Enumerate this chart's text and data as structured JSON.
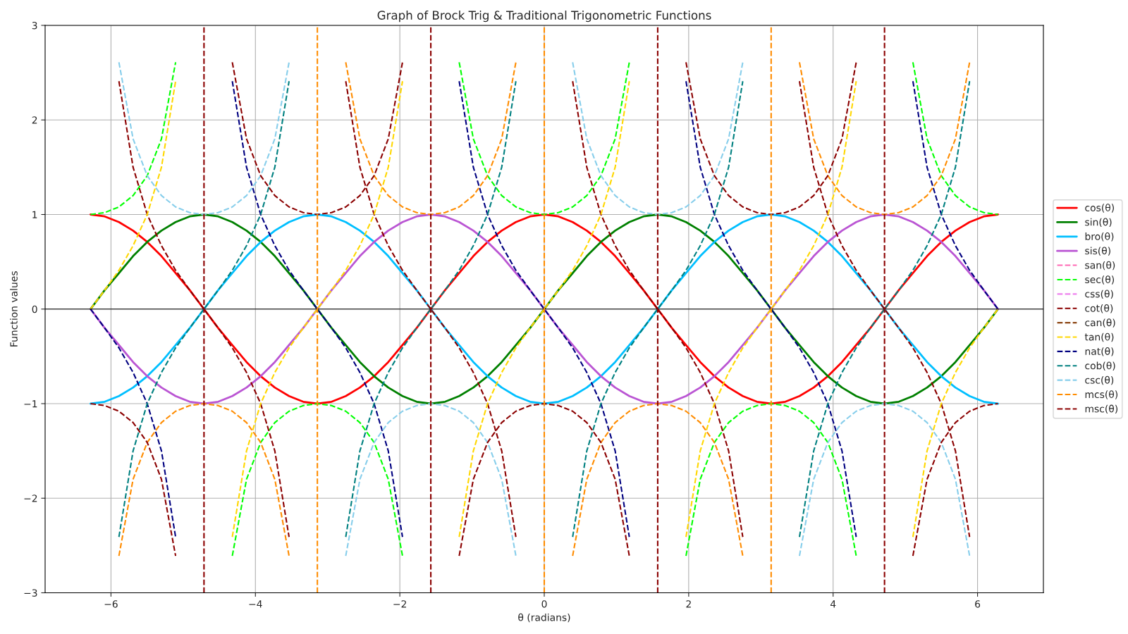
{
  "chart_data": {
    "type": "line",
    "title": "Graph of Brock Trig & Traditional Trigonometric Functions",
    "xlabel": "θ (radians)",
    "ylabel": "Function values",
    "x": [
      -6.283,
      -6.087,
      -5.89,
      -5.694,
      -5.498,
      -5.301,
      -5.105,
      -4.909,
      -4.712,
      -4.516,
      -4.32,
      -4.123,
      -3.927,
      -3.731,
      -3.534,
      -3.338,
      -3.142,
      -2.945,
      -2.749,
      -2.553,
      -2.356,
      -2.16,
      -1.963,
      -1.767,
      -1.571,
      -1.374,
      -1.178,
      -0.982,
      -0.785,
      -0.589,
      -0.393,
      -0.196,
      0,
      0.196,
      0.393,
      0.589,
      0.785,
      0.982,
      1.178,
      1.374,
      1.571,
      1.767,
      1.963,
      2.16,
      2.356,
      2.553,
      2.749,
      2.945,
      3.142,
      3.338,
      3.534,
      3.731,
      3.927,
      4.123,
      4.32,
      4.516,
      4.712,
      4.909,
      5.105,
      5.301,
      5.498,
      5.694,
      5.89,
      6.087,
      6.283
    ],
    "xlim": [
      -6.912,
      6.912
    ],
    "ylim": [
      -3,
      3
    ],
    "xticks": [
      {
        "value": -6,
        "label": "−6"
      },
      {
        "value": -4,
        "label": "−4"
      },
      {
        "value": -2,
        "label": "−2"
      },
      0,
      2,
      4,
      6
    ],
    "yticks": [
      {
        "value": -3,
        "label": "−3"
      },
      {
        "value": -2,
        "label": "−2"
      },
      {
        "value": -1,
        "label": "−1"
      },
      0,
      1,
      2,
      3
    ],
    "grid": true,
    "legend": "right",
    "ref_lines": [
      {
        "axis": "y",
        "value": 0,
        "color": "#000000",
        "line_style": "solid"
      },
      {
        "axis": "x",
        "value": -4.712,
        "color": "#8b0000",
        "line_style": "dashed"
      },
      {
        "axis": "x",
        "value": -1.571,
        "color": "#8b0000",
        "line_style": "dashed"
      },
      {
        "axis": "x",
        "value": 1.571,
        "color": "#8b0000",
        "line_style": "dashed"
      },
      {
        "axis": "x",
        "value": 4.712,
        "color": "#8b0000",
        "line_style": "dashed"
      },
      {
        "axis": "x",
        "value": -3.142,
        "color": "#ff8c00",
        "line_style": "dashed"
      },
      {
        "axis": "x",
        "value": 0,
        "color": "#ff8c00",
        "line_style": "dashed"
      },
      {
        "axis": "x",
        "value": 3.142,
        "color": "#ff8c00",
        "line_style": "dashed"
      }
    ],
    "series": [
      {
        "name": "cos(θ)",
        "color": "#ff0000",
        "line_style": "solid",
        "values": [
          1,
          0.98,
          0.92,
          0.83,
          0.71,
          0.56,
          0.38,
          0.2,
          0,
          -0.2,
          -0.38,
          -0.56,
          -0.71,
          -0.83,
          -0.92,
          -0.98,
          -1,
          -0.98,
          -0.92,
          -0.83,
          -0.71,
          -0.56,
          -0.38,
          -0.2,
          0,
          0.2,
          0.38,
          0.56,
          0.71,
          0.83,
          0.92,
          0.98,
          1,
          0.98,
          0.92,
          0.83,
          0.71,
          0.56,
          0.38,
          0.2,
          0,
          -0.2,
          -0.38,
          -0.56,
          -0.71,
          -0.83,
          -0.92,
          -0.98,
          -1,
          -0.98,
          -0.92,
          -0.83,
          -0.71,
          -0.56,
          -0.38,
          -0.2,
          0,
          0.2,
          0.38,
          0.56,
          0.71,
          0.83,
          0.92,
          0.98,
          1
        ]
      },
      {
        "name": "sin(θ)",
        "color": "#008000",
        "line_style": "solid",
        "values": [
          0,
          0.2,
          0.38,
          0.56,
          0.71,
          0.83,
          0.92,
          0.98,
          1,
          0.98,
          0.92,
          0.83,
          0.71,
          0.56,
          0.38,
          0.2,
          0,
          -0.2,
          -0.38,
          -0.56,
          -0.71,
          -0.83,
          -0.92,
          -0.98,
          -1,
          -0.98,
          -0.92,
          -0.83,
          -0.71,
          -0.56,
          -0.38,
          -0.2,
          0,
          0.2,
          0.38,
          0.56,
          0.71,
          0.83,
          0.92,
          0.98,
          1,
          0.98,
          0.92,
          0.83,
          0.71,
          0.56,
          0.38,
          0.2,
          0,
          -0.2,
          -0.38,
          -0.56,
          -0.71,
          -0.83,
          -0.92,
          -0.98,
          -1,
          -0.98,
          -0.92,
          -0.83,
          -0.71,
          -0.56,
          -0.38,
          -0.2,
          0
        ]
      },
      {
        "name": "bro(θ)",
        "color": "#00bfff",
        "line_style": "solid",
        "values": [
          -1,
          -0.98,
          -0.92,
          -0.83,
          -0.71,
          -0.56,
          -0.38,
          -0.2,
          0,
          0.2,
          0.38,
          0.56,
          0.71,
          0.83,
          0.92,
          0.98,
          1,
          0.98,
          0.92,
          0.83,
          0.71,
          0.56,
          0.38,
          0.2,
          0,
          -0.2,
          -0.38,
          -0.56,
          -0.71,
          -0.83,
          -0.92,
          -0.98,
          -1,
          -0.98,
          -0.92,
          -0.83,
          -0.71,
          -0.56,
          -0.38,
          -0.2,
          0,
          0.2,
          0.38,
          0.56,
          0.71,
          0.83,
          0.92,
          0.98,
          1,
          0.98,
          0.92,
          0.83,
          0.71,
          0.56,
          0.38,
          0.2,
          0,
          -0.2,
          -0.38,
          -0.56,
          -0.71,
          -0.83,
          -0.92,
          -0.98,
          -1
        ]
      },
      {
        "name": "sis(θ)",
        "color": "#ba55d3",
        "line_style": "solid",
        "values": [
          0,
          -0.2,
          -0.38,
          -0.56,
          -0.71,
          -0.83,
          -0.92,
          -0.98,
          -1,
          -0.98,
          -0.92,
          -0.83,
          -0.71,
          -0.56,
          -0.38,
          -0.2,
          0,
          0.2,
          0.38,
          0.56,
          0.71,
          0.83,
          0.92,
          0.98,
          1,
          0.98,
          0.92,
          0.83,
          0.71,
          0.56,
          0.38,
          0.2,
          0,
          -0.2,
          -0.38,
          -0.56,
          -0.71,
          -0.83,
          -0.92,
          -0.98,
          -1,
          -0.98,
          -0.92,
          -0.83,
          -0.71,
          -0.56,
          -0.38,
          -0.2,
          0,
          0.2,
          0.38,
          0.56,
          0.71,
          0.83,
          0.92,
          0.98,
          1,
          0.98,
          0.92,
          0.83,
          0.71,
          0.56,
          0.38,
          0.2,
          0
        ]
      },
      {
        "name": "san(θ)",
        "color": "#ff69b4",
        "line_style": "dashed",
        "values": [
          null,
          null,
          null,
          null,
          null,
          null,
          null,
          null,
          null,
          null,
          null,
          null,
          null,
          null,
          null,
          null,
          null,
          null,
          null,
          null,
          null,
          null,
          null,
          null,
          null,
          null,
          null,
          null,
          null,
          null,
          null,
          null,
          null,
          null,
          null,
          null,
          null,
          null,
          null,
          null,
          null,
          null,
          null,
          null,
          null,
          null,
          null,
          null,
          null,
          null,
          null,
          null,
          null,
          null,
          null,
          null,
          null,
          null,
          null,
          null,
          null,
          null,
          null,
          null,
          null
        ]
      },
      {
        "name": "sec(θ)",
        "color": "#00ff00",
        "line_style": "dashed",
        "values": [
          1,
          1.02,
          1.08,
          1.2,
          1.41,
          1.8,
          2.61,
          null,
          null,
          null,
          -2.61,
          -1.8,
          -1.41,
          -1.2,
          -1.08,
          -1.02,
          -1,
          -1.02,
          -1.08,
          -1.2,
          -1.41,
          -1.8,
          -2.61,
          null,
          null,
          null,
          2.61,
          1.8,
          1.41,
          1.2,
          1.08,
          1.02,
          1,
          1.02,
          1.08,
          1.2,
          1.41,
          1.8,
          2.61,
          null,
          null,
          null,
          -2.61,
          -1.8,
          -1.41,
          -1.2,
          -1.08,
          -1.02,
          -1,
          -1.02,
          -1.08,
          -1.2,
          -1.41,
          -1.8,
          -2.61,
          null,
          null,
          null,
          2.61,
          1.8,
          1.41,
          1.2,
          1.08,
          1.02,
          1
        ]
      },
      {
        "name": "css(θ)",
        "color": "#ee82ee",
        "line_style": "dashed",
        "values": [
          null,
          null,
          null,
          null,
          null,
          null,
          null,
          null,
          null,
          null,
          null,
          null,
          null,
          null,
          null,
          null,
          null,
          null,
          null,
          null,
          null,
          null,
          null,
          null,
          null,
          null,
          null,
          null,
          null,
          null,
          null,
          null,
          null,
          null,
          null,
          null,
          null,
          null,
          null,
          null,
          null,
          null,
          null,
          null,
          null,
          null,
          null,
          null,
          null,
          null,
          null,
          null,
          null,
          null,
          null,
          null,
          null,
          null,
          null,
          null,
          null,
          null,
          null,
          null,
          null
        ]
      },
      {
        "name": "cot(θ)",
        "color": "#8b0000",
        "line_style": "dashed",
        "values": [
          null,
          null,
          2.41,
          1.5,
          1,
          0.67,
          0.41,
          0.2,
          0,
          -0.2,
          -0.41,
          -0.67,
          -1,
          -1.5,
          -2.41,
          null,
          null,
          null,
          2.41,
          1.5,
          1,
          0.67,
          0.41,
          0.2,
          0,
          -0.2,
          -0.41,
          -0.67,
          -1,
          -1.5,
          -2.41,
          null,
          null,
          null,
          2.41,
          1.5,
          1,
          0.67,
          0.41,
          0.2,
          0,
          -0.2,
          -0.41,
          -0.67,
          -1,
          -1.5,
          -2.41,
          null,
          null,
          null,
          2.41,
          1.5,
          1,
          0.67,
          0.41,
          0.2,
          0,
          -0.2,
          -0.41,
          -0.67,
          -1,
          -1.5,
          -2.41,
          null,
          null
        ]
      },
      {
        "name": "can(θ)",
        "color": "#8b4513",
        "line_style": "dashed",
        "values": [
          null,
          null,
          null,
          null,
          null,
          null,
          null,
          null,
          null,
          null,
          null,
          null,
          null,
          null,
          null,
          null,
          null,
          null,
          null,
          null,
          null,
          null,
          null,
          null,
          null,
          null,
          null,
          null,
          null,
          null,
          null,
          null,
          null,
          null,
          null,
          null,
          null,
          null,
          null,
          null,
          null,
          null,
          null,
          null,
          null,
          null,
          null,
          null,
          null,
          null,
          null,
          null,
          null,
          null,
          null,
          null,
          null,
          null,
          null,
          null,
          null,
          null,
          null,
          null,
          null
        ]
      },
      {
        "name": "tan(θ)",
        "color": "#ffd700",
        "line_style": "dashed",
        "values": [
          0,
          0.2,
          0.41,
          0.67,
          1,
          1.5,
          2.41,
          null,
          null,
          null,
          -2.41,
          -1.5,
          -1,
          -0.67,
          -0.41,
          -0.2,
          0,
          0.2,
          0.41,
          0.67,
          1,
          1.5,
          2.41,
          null,
          null,
          null,
          -2.41,
          -1.5,
          -1,
          -0.67,
          -0.41,
          -0.2,
          0,
          0.2,
          0.41,
          0.67,
          1,
          1.5,
          2.41,
          null,
          null,
          null,
          -2.41,
          -1.5,
          -1,
          -0.67,
          -0.41,
          -0.2,
          0,
          0.2,
          0.41,
          0.67,
          1,
          1.5,
          2.41,
          null,
          null,
          null,
          -2.41,
          -1.5,
          -1,
          -0.67,
          -0.41,
          -0.2,
          0
        ]
      },
      {
        "name": "nat(θ)",
        "color": "#000080",
        "line_style": "dashed",
        "values": [
          0,
          -0.2,
          -0.41,
          -0.67,
          -1,
          -1.5,
          -2.41,
          null,
          null,
          null,
          2.41,
          1.5,
          1,
          0.67,
          0.41,
          0.2,
          0,
          -0.2,
          -0.41,
          -0.67,
          -1,
          -1.5,
          -2.41,
          null,
          null,
          null,
          2.41,
          1.5,
          1,
          0.67,
          0.41,
          0.2,
          0,
          -0.2,
          -0.41,
          -0.67,
          -1,
          -1.5,
          -2.41,
          null,
          null,
          null,
          2.41,
          1.5,
          1,
          0.67,
          0.41,
          0.2,
          0,
          -0.2,
          -0.41,
          -0.67,
          -1,
          -1.5,
          -2.41,
          null,
          null,
          null,
          2.41,
          1.5,
          1,
          0.67,
          0.41,
          0.2,
          0
        ]
      },
      {
        "name": "cob(θ)",
        "color": "#008080",
        "line_style": "dashed",
        "values": [
          null,
          null,
          -2.41,
          -1.5,
          -1,
          -0.67,
          -0.41,
          -0.2,
          0,
          0.2,
          0.41,
          0.67,
          1,
          1.5,
          2.41,
          null,
          null,
          null,
          -2.41,
          -1.5,
          -1,
          -0.67,
          -0.41,
          -0.2,
          0,
          0.2,
          0.41,
          0.67,
          1,
          1.5,
          2.41,
          null,
          null,
          null,
          -2.41,
          -1.5,
          -1,
          -0.67,
          -0.41,
          -0.2,
          0,
          0.2,
          0.41,
          0.67,
          1,
          1.5,
          2.41,
          null,
          null,
          null,
          -2.41,
          -1.5,
          -1,
          -0.67,
          -0.41,
          -0.2,
          0,
          0.2,
          0.41,
          0.67,
          1,
          1.5,
          2.41,
          null,
          null
        ]
      },
      {
        "name": "csc(θ)",
        "color": "#87ceeb",
        "line_style": "dashed",
        "values": [
          null,
          null,
          2.61,
          1.8,
          1.41,
          1.2,
          1.08,
          1.02,
          1,
          1.02,
          1.08,
          1.2,
          1.41,
          1.8,
          2.61,
          null,
          null,
          null,
          -2.61,
          -1.8,
          -1.41,
          -1.2,
          -1.08,
          -1.02,
          -1,
          -1.02,
          -1.08,
          -1.2,
          -1.41,
          -1.8,
          -2.61,
          null,
          null,
          null,
          2.61,
          1.8,
          1.41,
          1.2,
          1.08,
          1.02,
          1,
          1.02,
          1.08,
          1.2,
          1.41,
          1.8,
          2.61,
          null,
          null,
          null,
          -2.61,
          -1.8,
          -1.41,
          -1.2,
          -1.08,
          -1.02,
          -1,
          -1.02,
          -1.08,
          -1.2,
          -1.41,
          -1.8,
          -2.61,
          null,
          null
        ]
      },
      {
        "name": "mcs(θ)",
        "color": "#ff8c00",
        "line_style": "dashed",
        "values": [
          null,
          null,
          -2.61,
          -1.8,
          -1.41,
          -1.2,
          -1.08,
          -1.02,
          -1,
          -1.02,
          -1.08,
          -1.2,
          -1.41,
          -1.8,
          -2.61,
          null,
          null,
          null,
          2.61,
          1.8,
          1.41,
          1.2,
          1.08,
          1.02,
          1,
          1.02,
          1.08,
          1.2,
          1.41,
          1.8,
          2.61,
          null,
          null,
          null,
          -2.61,
          -1.8,
          -1.41,
          -1.2,
          -1.08,
          -1.02,
          -1,
          -1.02,
          -1.08,
          -1.2,
          -1.41,
          -1.8,
          -2.61,
          null,
          null,
          null,
          2.61,
          1.8,
          1.41,
          1.2,
          1.08,
          1.02,
          1,
          1.02,
          1.08,
          1.2,
          1.41,
          1.8,
          2.61,
          null,
          null
        ]
      },
      {
        "name": "msc(θ)",
        "color": "#8b0000",
        "line_style": "dashed",
        "values": [
          -1,
          -1.02,
          -1.08,
          -1.2,
          -1.41,
          -1.8,
          -2.61,
          null,
          null,
          null,
          2.61,
          1.8,
          1.41,
          1.2,
          1.08,
          1.02,
          1,
          1.02,
          1.08,
          1.2,
          1.41,
          1.8,
          2.61,
          null,
          null,
          null,
          -2.61,
          -1.8,
          -1.41,
          -1.2,
          -1.08,
          -1.02,
          -1,
          -1.02,
          -1.08,
          -1.2,
          -1.41,
          -1.8,
          -2.61,
          null,
          null,
          null,
          2.61,
          1.8,
          1.41,
          1.2,
          1.08,
          1.02,
          1,
          1.02,
          1.08,
          1.2,
          1.41,
          1.8,
          2.61,
          null,
          null,
          null,
          -2.61,
          -1.8,
          -1.41,
          -1.2,
          -1.08,
          -1.02,
          -1
        ]
      }
    ]
  }
}
